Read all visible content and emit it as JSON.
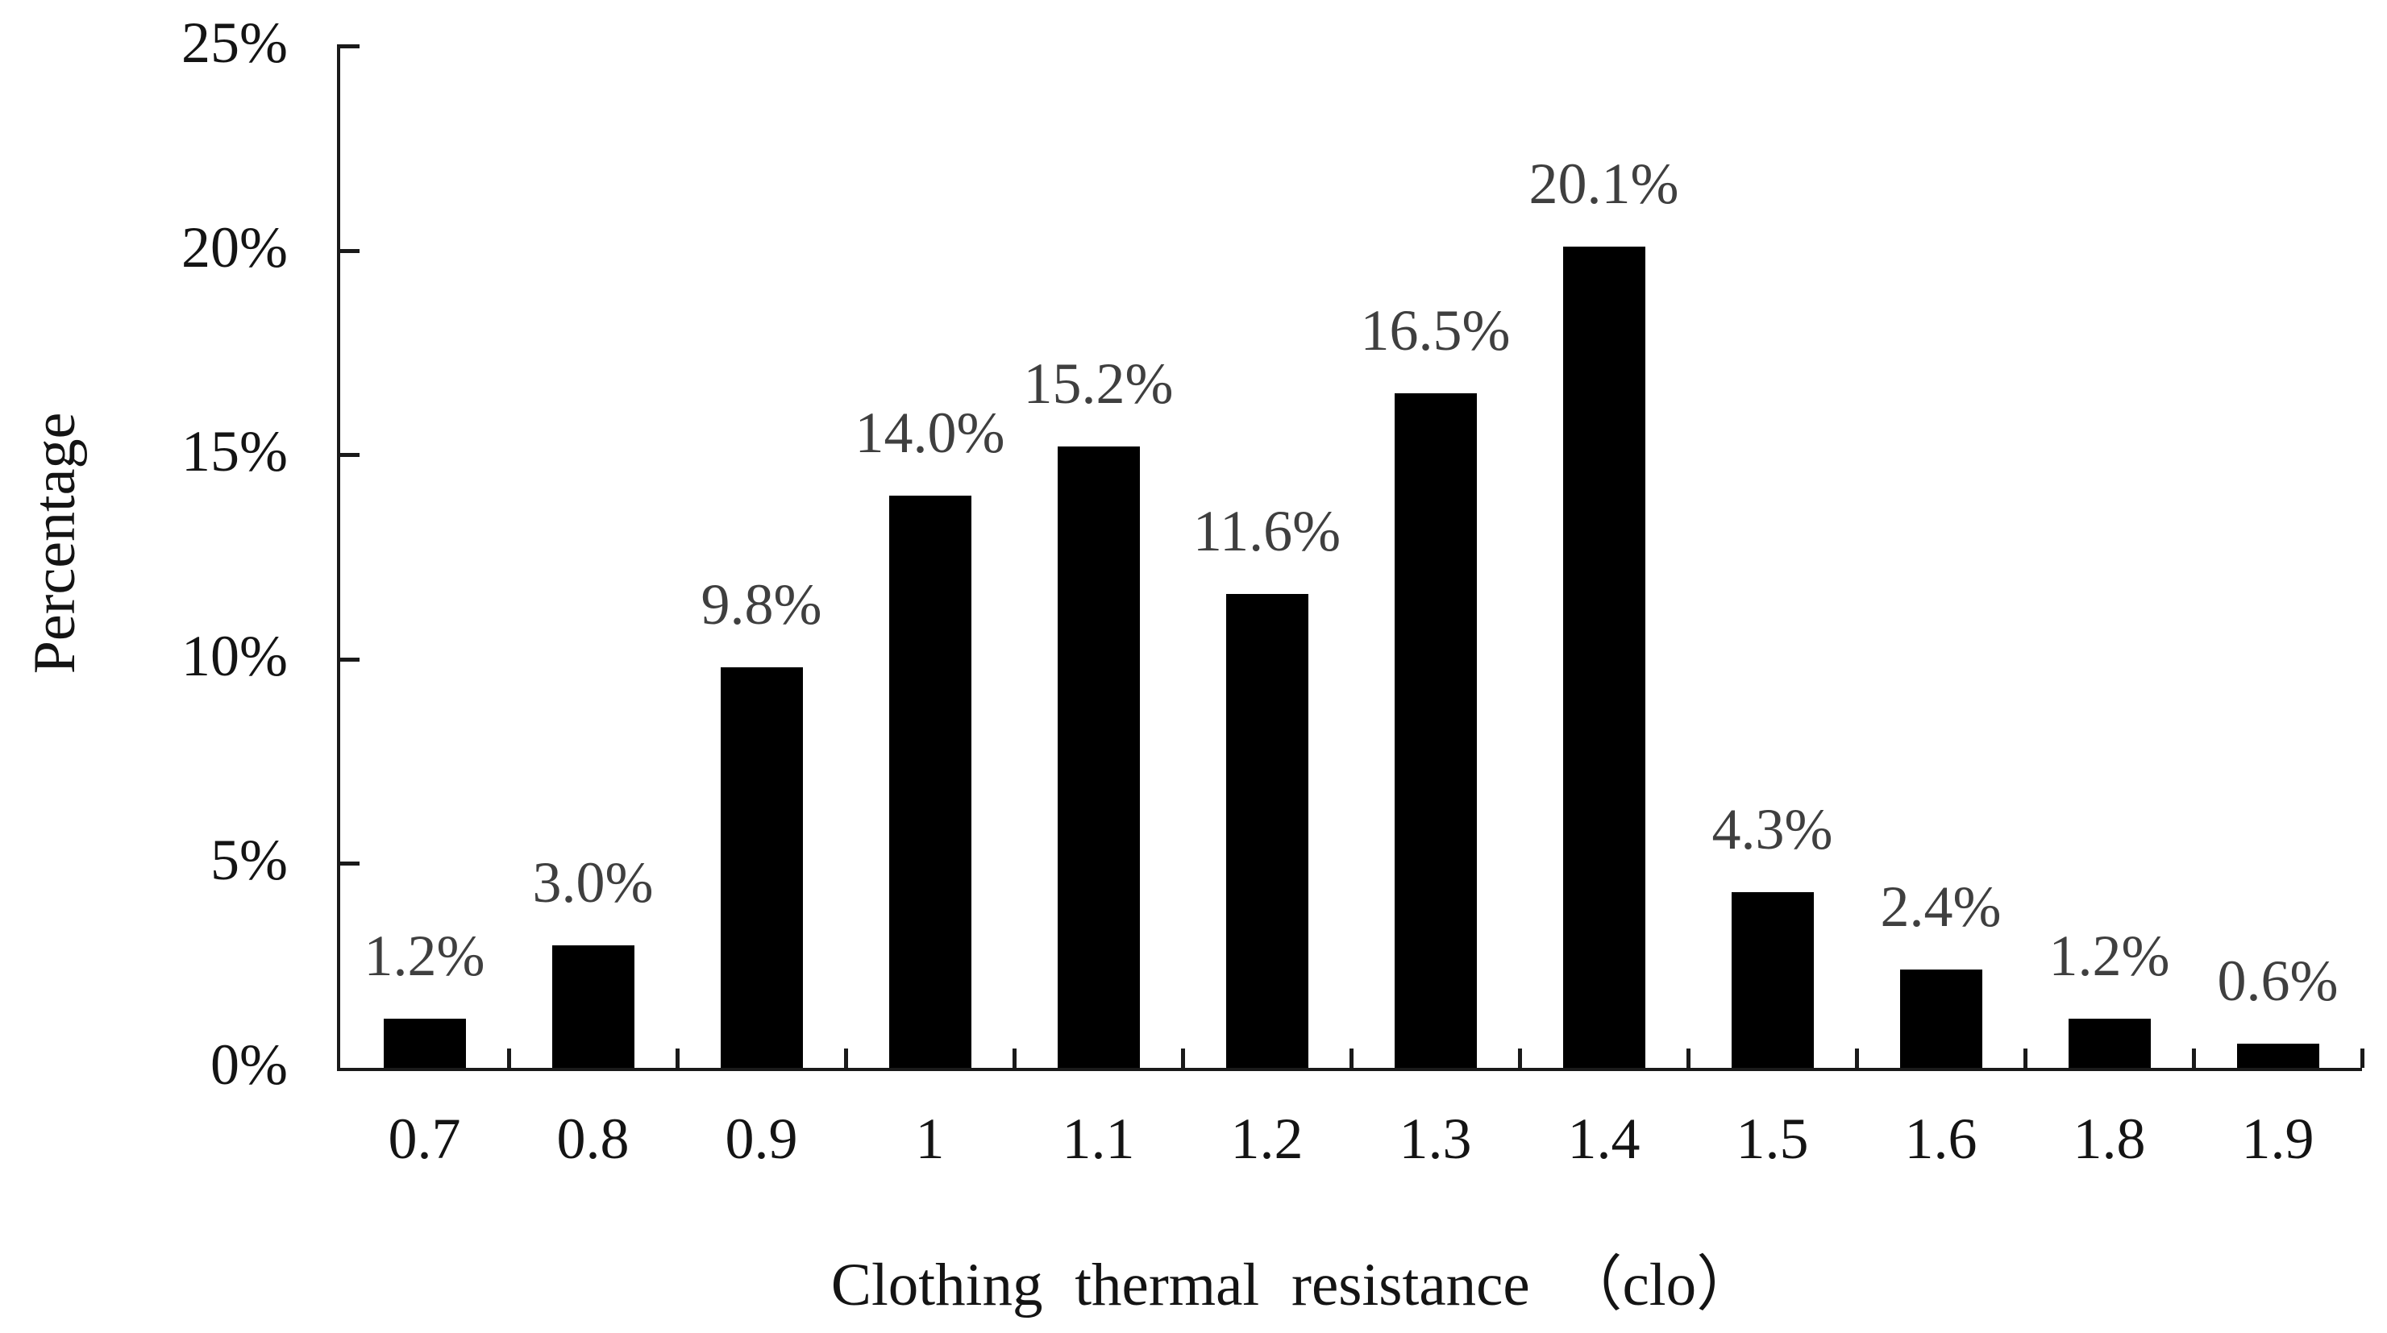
{
  "chart_data": {
    "type": "bar",
    "title": "",
    "xlabel": "Clothing thermal resistance （clo）",
    "ylabel": "Percentage",
    "categories": [
      "0.7",
      "0.8",
      "0.9",
      "1",
      "1.1",
      "1.2",
      "1.3",
      "1.4",
      "1.5",
      "1.6",
      "1.8",
      "1.9"
    ],
    "values": [
      1.2,
      3.0,
      9.8,
      14.0,
      15.2,
      11.6,
      16.5,
      20.1,
      4.3,
      2.4,
      1.2,
      0.6
    ],
    "data_labels": [
      "1.2%",
      "3.0%",
      "9.8%",
      "14.0%",
      "15.2%",
      "11.6%",
      "16.5%",
      "20.1%",
      "4.3%",
      "2.4%",
      "1.2%",
      "0.6%"
    ],
    "y_ticks": [
      {
        "value": 0,
        "label": "0%"
      },
      {
        "value": 5,
        "label": "5%"
      },
      {
        "value": 10,
        "label": "10%"
      },
      {
        "value": 15,
        "label": "15%"
      },
      {
        "value": 20,
        "label": "20%"
      },
      {
        "value": 25,
        "label": "25%"
      }
    ],
    "ylim": [
      0,
      25
    ],
    "grid": false,
    "legend": "none",
    "colors": {
      "bar": "#000000",
      "axis": "#1a1a1a",
      "tick_label": "#141414",
      "data_label": "#3f3f3f",
      "axis_title": "#141414",
      "background": "#ffffff"
    }
  }
}
